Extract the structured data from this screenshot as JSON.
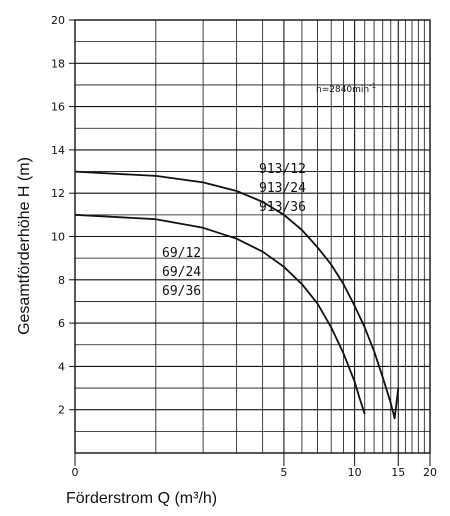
{
  "chart_data": {
    "type": "line",
    "xlabel": "Förderstrom Q (m³/h)",
    "ylabel": "Gesamtförderhöhe H (m)",
    "x_scale": "log",
    "xlim": [
      0,
      20
    ],
    "ylim": [
      0,
      20
    ],
    "x_ticks": [
      0,
      5,
      10,
      15,
      20
    ],
    "y_ticks": [
      2,
      4,
      6,
      8,
      10,
      12,
      14,
      16,
      18,
      20
    ],
    "grid": true,
    "speed_label": "n=2840min",
    "speed_exp": "-1",
    "series": [
      {
        "labels": [
          "913/12",
          "913/24",
          "913/36"
        ],
        "x": [
          0,
          1,
          2,
          3,
          4,
          5,
          6,
          7,
          8,
          9,
          10,
          11,
          12,
          13,
          14,
          14.5,
          15
        ],
        "y": [
          13,
          12.8,
          12.5,
          12.1,
          11.6,
          11.0,
          10.3,
          9.5,
          8.7,
          7.8,
          6.8,
          5.8,
          4.7,
          3.5,
          2.3,
          1.6,
          3.0
        ]
      },
      {
        "labels": [
          "69/12",
          "69/24",
          "69/36"
        ],
        "x": [
          0,
          1,
          2,
          3,
          4,
          5,
          6,
          7,
          8,
          9,
          10,
          10.5,
          11
        ],
        "y": [
          11,
          10.8,
          10.4,
          9.9,
          9.3,
          8.6,
          7.8,
          6.9,
          5.8,
          4.6,
          3.3,
          2.5,
          1.8
        ]
      }
    ]
  }
}
